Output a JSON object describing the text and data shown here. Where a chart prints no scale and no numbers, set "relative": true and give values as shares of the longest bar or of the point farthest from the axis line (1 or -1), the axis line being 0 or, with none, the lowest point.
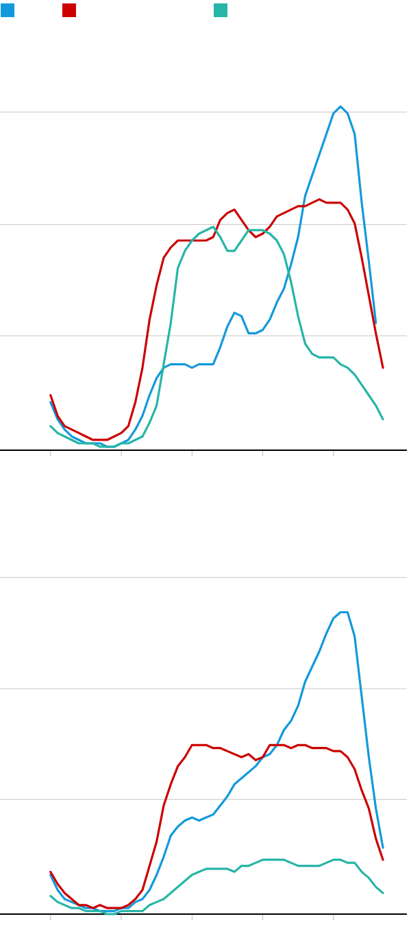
{
  "chart_data": [
    {
      "type": "line",
      "relative": true,
      "marker": "none",
      "line_style": "solid",
      "categories": [
        null,
        null,
        null,
        null,
        null,
        null,
        null,
        null,
        null,
        null,
        null,
        null,
        null,
        null,
        null,
        null,
        null,
        null,
        null,
        null,
        null,
        null,
        null,
        null,
        null,
        null,
        null,
        null,
        null,
        null,
        null,
        null,
        null,
        null,
        null,
        null,
        null,
        null,
        null,
        null,
        null,
        null,
        null,
        null,
        null,
        null,
        null,
        null
      ],
      "ref_lines": [
        {
          "axis": "y",
          "value": 0.333,
          "color": "#c8c8c8"
        },
        {
          "axis": "y",
          "value": 0.657,
          "color": "#c8c8c8"
        },
        {
          "axis": "y",
          "value": 0.984,
          "color": "#c8c8c8"
        }
      ],
      "series": [
        {
          "color": "#1399db",
          "values": [
            0.14,
            0.09,
            0.06,
            0.04,
            0.03,
            0.02,
            0.02,
            0.02,
            0.01,
            0.01,
            0.02,
            0.03,
            0.06,
            0.1,
            0.16,
            0.21,
            0.24,
            0.25,
            0.25,
            0.25,
            0.24,
            0.25,
            0.25,
            0.25,
            0.3,
            0.36,
            0.4,
            0.39,
            0.34,
            0.34,
            0.35,
            0.38,
            0.43,
            0.47,
            0.54,
            0.62,
            0.74,
            0.8,
            0.86,
            0.92,
            0.98,
            1,
            0.98,
            0.92,
            0.72,
            0.55,
            0.37,
            null
          ]
        },
        {
          "color": "#cc0000",
          "values": [
            0.16,
            0.1,
            0.07,
            0.06,
            0.05,
            0.04,
            0.03,
            0.03,
            0.03,
            0.04,
            0.05,
            0.07,
            0.14,
            0.24,
            0.38,
            0.48,
            0.56,
            0.59,
            0.61,
            0.61,
            0.61,
            0.61,
            0.61,
            0.62,
            0.67,
            0.69,
            0.7,
            0.67,
            0.64,
            0.62,
            0.63,
            0.65,
            0.68,
            0.69,
            0.7,
            0.71,
            0.71,
            0.72,
            0.73,
            0.72,
            0.72,
            0.72,
            0.7,
            0.66,
            0.56,
            0.45,
            0.34,
            0.24
          ]
        },
        {
          "color": "#26b5a7",
          "values": [
            0.07,
            0.05,
            0.04,
            0.03,
            0.02,
            0.02,
            0.02,
            0.01,
            0.01,
            0.01,
            0.02,
            0.02,
            0.03,
            0.04,
            0.08,
            0.13,
            0.25,
            0.37,
            0.53,
            0.58,
            0.61,
            0.63,
            0.64,
            0.65,
            0.62,
            0.58,
            0.58,
            0.61,
            0.64,
            0.64,
            0.64,
            0.63,
            0.61,
            0.57,
            0.49,
            0.39,
            0.31,
            0.28,
            0.27,
            0.27,
            0.27,
            0.25,
            0.24,
            0.22,
            0.19,
            0.16,
            0.13,
            0.09
          ]
        }
      ]
    },
    {
      "type": "line",
      "relative": true,
      "marker": "none",
      "line_style": "solid",
      "categories": [
        null,
        null,
        null,
        null,
        null,
        null,
        null,
        null,
        null,
        null,
        null,
        null,
        null,
        null,
        null,
        null,
        null,
        null,
        null,
        null,
        null,
        null,
        null,
        null,
        null,
        null,
        null,
        null,
        null,
        null,
        null,
        null,
        null,
        null,
        null,
        null,
        null,
        null,
        null,
        null,
        null,
        null,
        null,
        null,
        null,
        null,
        null,
        null
      ],
      "ref_lines": [
        {
          "axis": "y",
          "value": 0.38,
          "color": "#c8c8c8"
        },
        {
          "axis": "y",
          "value": 0.747,
          "color": "#c8c8c8"
        },
        {
          "axis": "y",
          "value": 1.115,
          "color": "#c8c8c8"
        }
      ],
      "series": [
        {
          "color": "#1399db",
          "values": [
            0.13,
            0.08,
            0.05,
            0.04,
            0.03,
            0.02,
            0.02,
            0.01,
            0.01,
            0.01,
            0.02,
            0.02,
            0.04,
            0.05,
            0.08,
            0.13,
            0.19,
            0.26,
            0.29,
            0.31,
            0.32,
            0.31,
            0.32,
            0.33,
            0.36,
            0.39,
            0.43,
            0.45,
            0.47,
            0.49,
            0.52,
            0.53,
            0.56,
            0.61,
            0.64,
            0.69,
            0.77,
            0.82,
            0.87,
            0.93,
            0.98,
            1,
            1.0,
            0.92,
            0.72,
            0.52,
            0.35,
            0.22
          ]
        },
        {
          "color": "#cc0000",
          "values": [
            0.14,
            0.1,
            0.07,
            0.05,
            0.03,
            0.03,
            0.02,
            0.03,
            0.02,
            0.02,
            0.02,
            0.03,
            0.05,
            0.08,
            0.16,
            0.24,
            0.36,
            0.43,
            0.49,
            0.52,
            0.56,
            0.56,
            0.56,
            0.55,
            0.55,
            0.54,
            0.53,
            0.52,
            0.53,
            0.51,
            0.52,
            0.56,
            0.56,
            0.56,
            0.55,
            0.56,
            0.56,
            0.55,
            0.55,
            0.55,
            0.54,
            0.54,
            0.52,
            0.48,
            0.41,
            0.35,
            0.25,
            0.18
          ]
        },
        {
          "color": "#26b5a7",
          "values": [
            0.06,
            0.04,
            0.03,
            0.02,
            0.02,
            0.01,
            0.01,
            0.01,
            0,
            0,
            0.01,
            0.01,
            0.01,
            0.01,
            0.03,
            0.04,
            0.05,
            0.07,
            0.09,
            0.11,
            0.13,
            0.14,
            0.15,
            0.15,
            0.15,
            0.15,
            0.14,
            0.16,
            0.16,
            0.17,
            0.18,
            0.18,
            0.18,
            0.18,
            0.17,
            0.16,
            0.16,
            0.16,
            0.16,
            0.17,
            0.18,
            0.18,
            0.17,
            0.17,
            0.14,
            0.12,
            0.09,
            0.07
          ]
        }
      ]
    }
  ]
}
